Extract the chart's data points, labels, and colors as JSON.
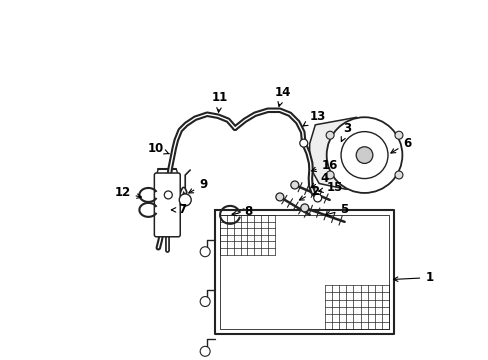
{
  "background_color": "#ffffff",
  "line_color": "#222222",
  "figsize": [
    4.89,
    3.6
  ],
  "dpi": 100,
  "label_fontsize": 8.5,
  "label_color": "#000000"
}
